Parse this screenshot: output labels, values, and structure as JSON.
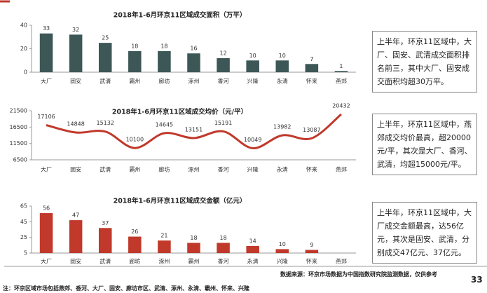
{
  "chart_data": [
    {
      "type": "bar",
      "title": "2018年1-6月环京11区域成交面积（万平）",
      "categories": [
        "大厂",
        "固安",
        "武清",
        "霸州",
        "廊坊",
        "涿州",
        "香河",
        "兴隆",
        "永清",
        "怀来",
        "燕郊"
      ],
      "values": [
        33,
        32,
        25,
        18,
        18,
        16,
        12,
        10,
        10,
        7,
        1
      ],
      "color": "#3d5757",
      "ylim": [
        0,
        40
      ],
      "yticks": [
        0,
        20,
        40
      ]
    },
    {
      "type": "line",
      "title": "2018年1-6月环京11区域成交均价（元/平）",
      "categories": [
        "大厂",
        "固安",
        "武清",
        "霸州",
        "廊坊",
        "涿州",
        "香河",
        "兴隆",
        "永清",
        "怀来",
        "燕郊"
      ],
      "values": [
        17106,
        14848,
        15132,
        10100,
        14645,
        13151,
        15191,
        10049,
        13982,
        13087,
        20432
      ],
      "color": "#c0392b",
      "ylim": [
        6500,
        21500
      ],
      "yticks": [
        6500,
        11500,
        16500,
        21500
      ]
    },
    {
      "type": "bar",
      "title": "2018年1-6月环京11区域成交金额（亿元）",
      "categories": [
        "大厂",
        "固安",
        "武清",
        "廊坊",
        "涿州",
        "霸州",
        "香河",
        "永清",
        "兴隆",
        "怀来",
        "燕郊"
      ],
      "values": [
        56,
        47,
        37,
        26,
        21,
        18,
        18,
        14,
        10,
        9,
        null
      ],
      "color": "#c0392b",
      "ylim": [
        5,
        65
      ],
      "yticks": [
        5,
        25,
        45,
        65
      ]
    }
  ],
  "notes": [
    "上半年，环京11区域中，大厂、固安、武清成交面积排名前三，其中大厂、固安成交面积均超30万平。",
    "上半年，环京11区域中，燕郊成交均价最高，超20000元/平，其次是大厂、香河、武清，均超15000元/平。",
    "上半年，环京11区域中，大厂成交金额最高，达56亿元，其次是固安、武清，分别成交47亿元、37亿元。"
  ],
  "source": "数据来源：环京市场数据为中国指数研究院监测数据，仅供参考",
  "page_number": "33",
  "footnote": "注：环京区域市场包括燕郊、香河、大厂、固安、廊坊市区、武清、涿州、永清、霸州、怀来、兴隆"
}
